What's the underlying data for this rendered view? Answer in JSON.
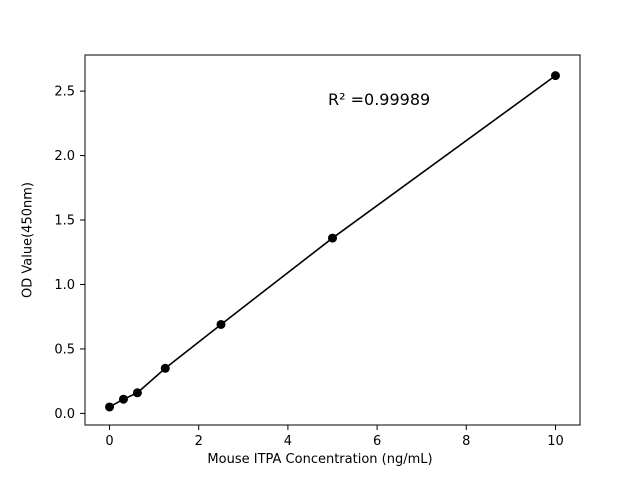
{
  "chart_data": {
    "type": "scatter",
    "x": [
      0,
      0.3125,
      0.625,
      1.25,
      2.5,
      5,
      10
    ],
    "y": [
      0.05,
      0.11,
      0.16,
      0.35,
      0.69,
      1.36,
      2.62
    ],
    "annotation": "R² =0.99989",
    "xlabel": "Mouse ITPA Concentration (ng/mL)",
    "ylabel": "OD Value(450nm)",
    "xticks": [
      0,
      2,
      4,
      6,
      8,
      10
    ],
    "yticks": [
      0.0,
      0.5,
      1.0,
      1.5,
      2.0,
      2.5
    ],
    "xlim": [
      -0.55,
      10.55
    ],
    "ylim": [
      -0.09,
      2.78
    ],
    "line": true,
    "legend": "none",
    "grid": false,
    "line_color": "#000000",
    "marker_color": "#000000",
    "background_color": "#ffffff"
  }
}
